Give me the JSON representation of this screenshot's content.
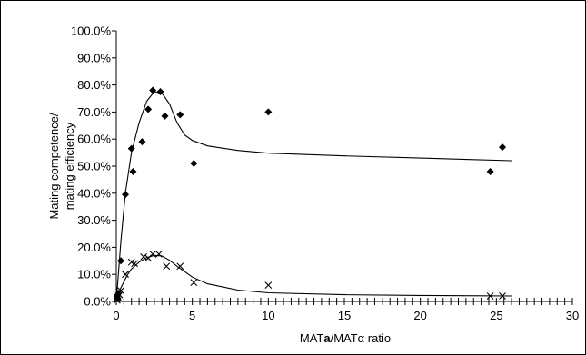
{
  "chart_data": {
    "type": "scatter",
    "title": "",
    "xlabel_parts": [
      "MAT",
      "a",
      "/MATα ratio"
    ],
    "ylabel_lines": [
      "Mating competence/",
      "mating efficiency"
    ],
    "xlim": [
      0,
      30
    ],
    "ylim": [
      0,
      100
    ],
    "x_ticks": [
      0,
      5,
      10,
      15,
      20,
      25,
      30
    ],
    "y_ticks": [
      0,
      10,
      20,
      30,
      40,
      50,
      60,
      70,
      80,
      90,
      100
    ],
    "x_tick_labels": [
      "0",
      "5",
      "10",
      "15",
      "20",
      "25",
      "30"
    ],
    "y_tick_labels": [
      "0.0%",
      "10.0%",
      "20.0%",
      "30.0%",
      "40.0%",
      "50.0%",
      "60.0%",
      "70.0%",
      "80.0%",
      "90.0%",
      "100.0%"
    ],
    "x_minor_step": 0.5,
    "grid": false,
    "legend": "none",
    "series": [
      {
        "marker": "diamond",
        "points": [
          [
            0.05,
            2
          ],
          [
            0.1,
            1
          ],
          [
            0.15,
            3
          ],
          [
            0.3,
            15
          ],
          [
            0.6,
            39.5
          ],
          [
            1.0,
            56.5
          ],
          [
            1.1,
            48
          ],
          [
            1.7,
            59
          ],
          [
            2.1,
            71
          ],
          [
            2.4,
            78
          ],
          [
            2.9,
            77.5
          ],
          [
            3.2,
            68.5
          ],
          [
            4.2,
            69
          ],
          [
            5.1,
            51
          ],
          [
            10.0,
            70
          ],
          [
            24.6,
            48
          ],
          [
            25.4,
            57
          ]
        ],
        "trend": [
          [
            0,
            0
          ],
          [
            0.3,
            22
          ],
          [
            0.6,
            40
          ],
          [
            1.0,
            55
          ],
          [
            1.5,
            66
          ],
          [
            2.0,
            74
          ],
          [
            2.5,
            77.5
          ],
          [
            3.0,
            77
          ],
          [
            3.5,
            73
          ],
          [
            4.0,
            66
          ],
          [
            4.5,
            61.5
          ],
          [
            5.0,
            59.5
          ],
          [
            6.0,
            57.5
          ],
          [
            8.0,
            55.8
          ],
          [
            10.0,
            54.8
          ],
          [
            15.0,
            53.8
          ],
          [
            20.0,
            53
          ],
          [
            26.0,
            52
          ]
        ]
      },
      {
        "marker": "x",
        "points": [
          [
            0.05,
            0.5
          ],
          [
            0.1,
            1.5
          ],
          [
            0.2,
            2.5
          ],
          [
            0.3,
            4
          ],
          [
            0.6,
            10
          ],
          [
            1.0,
            14.5
          ],
          [
            1.2,
            14
          ],
          [
            1.8,
            16.5
          ],
          [
            2.1,
            16
          ],
          [
            2.4,
            17.5
          ],
          [
            2.8,
            17.5
          ],
          [
            3.3,
            13
          ],
          [
            4.2,
            13
          ],
          [
            5.1,
            7
          ],
          [
            10.0,
            6
          ],
          [
            24.6,
            2
          ],
          [
            25.4,
            2
          ]
        ],
        "trend": [
          [
            0,
            0
          ],
          [
            0.3,
            5
          ],
          [
            0.7,
            9.5
          ],
          [
            1.0,
            12
          ],
          [
            1.5,
            14.5
          ],
          [
            2.0,
            16.2
          ],
          [
            2.5,
            17
          ],
          [
            3.0,
            16.8
          ],
          [
            3.5,
            15.2
          ],
          [
            4.0,
            13
          ],
          [
            4.5,
            11
          ],
          [
            5.0,
            9
          ],
          [
            6.0,
            6.5
          ],
          [
            8.0,
            4.2
          ],
          [
            10.0,
            3.2
          ],
          [
            15.0,
            2.5
          ],
          [
            20.0,
            2.2
          ],
          [
            26.0,
            2
          ]
        ]
      }
    ]
  }
}
